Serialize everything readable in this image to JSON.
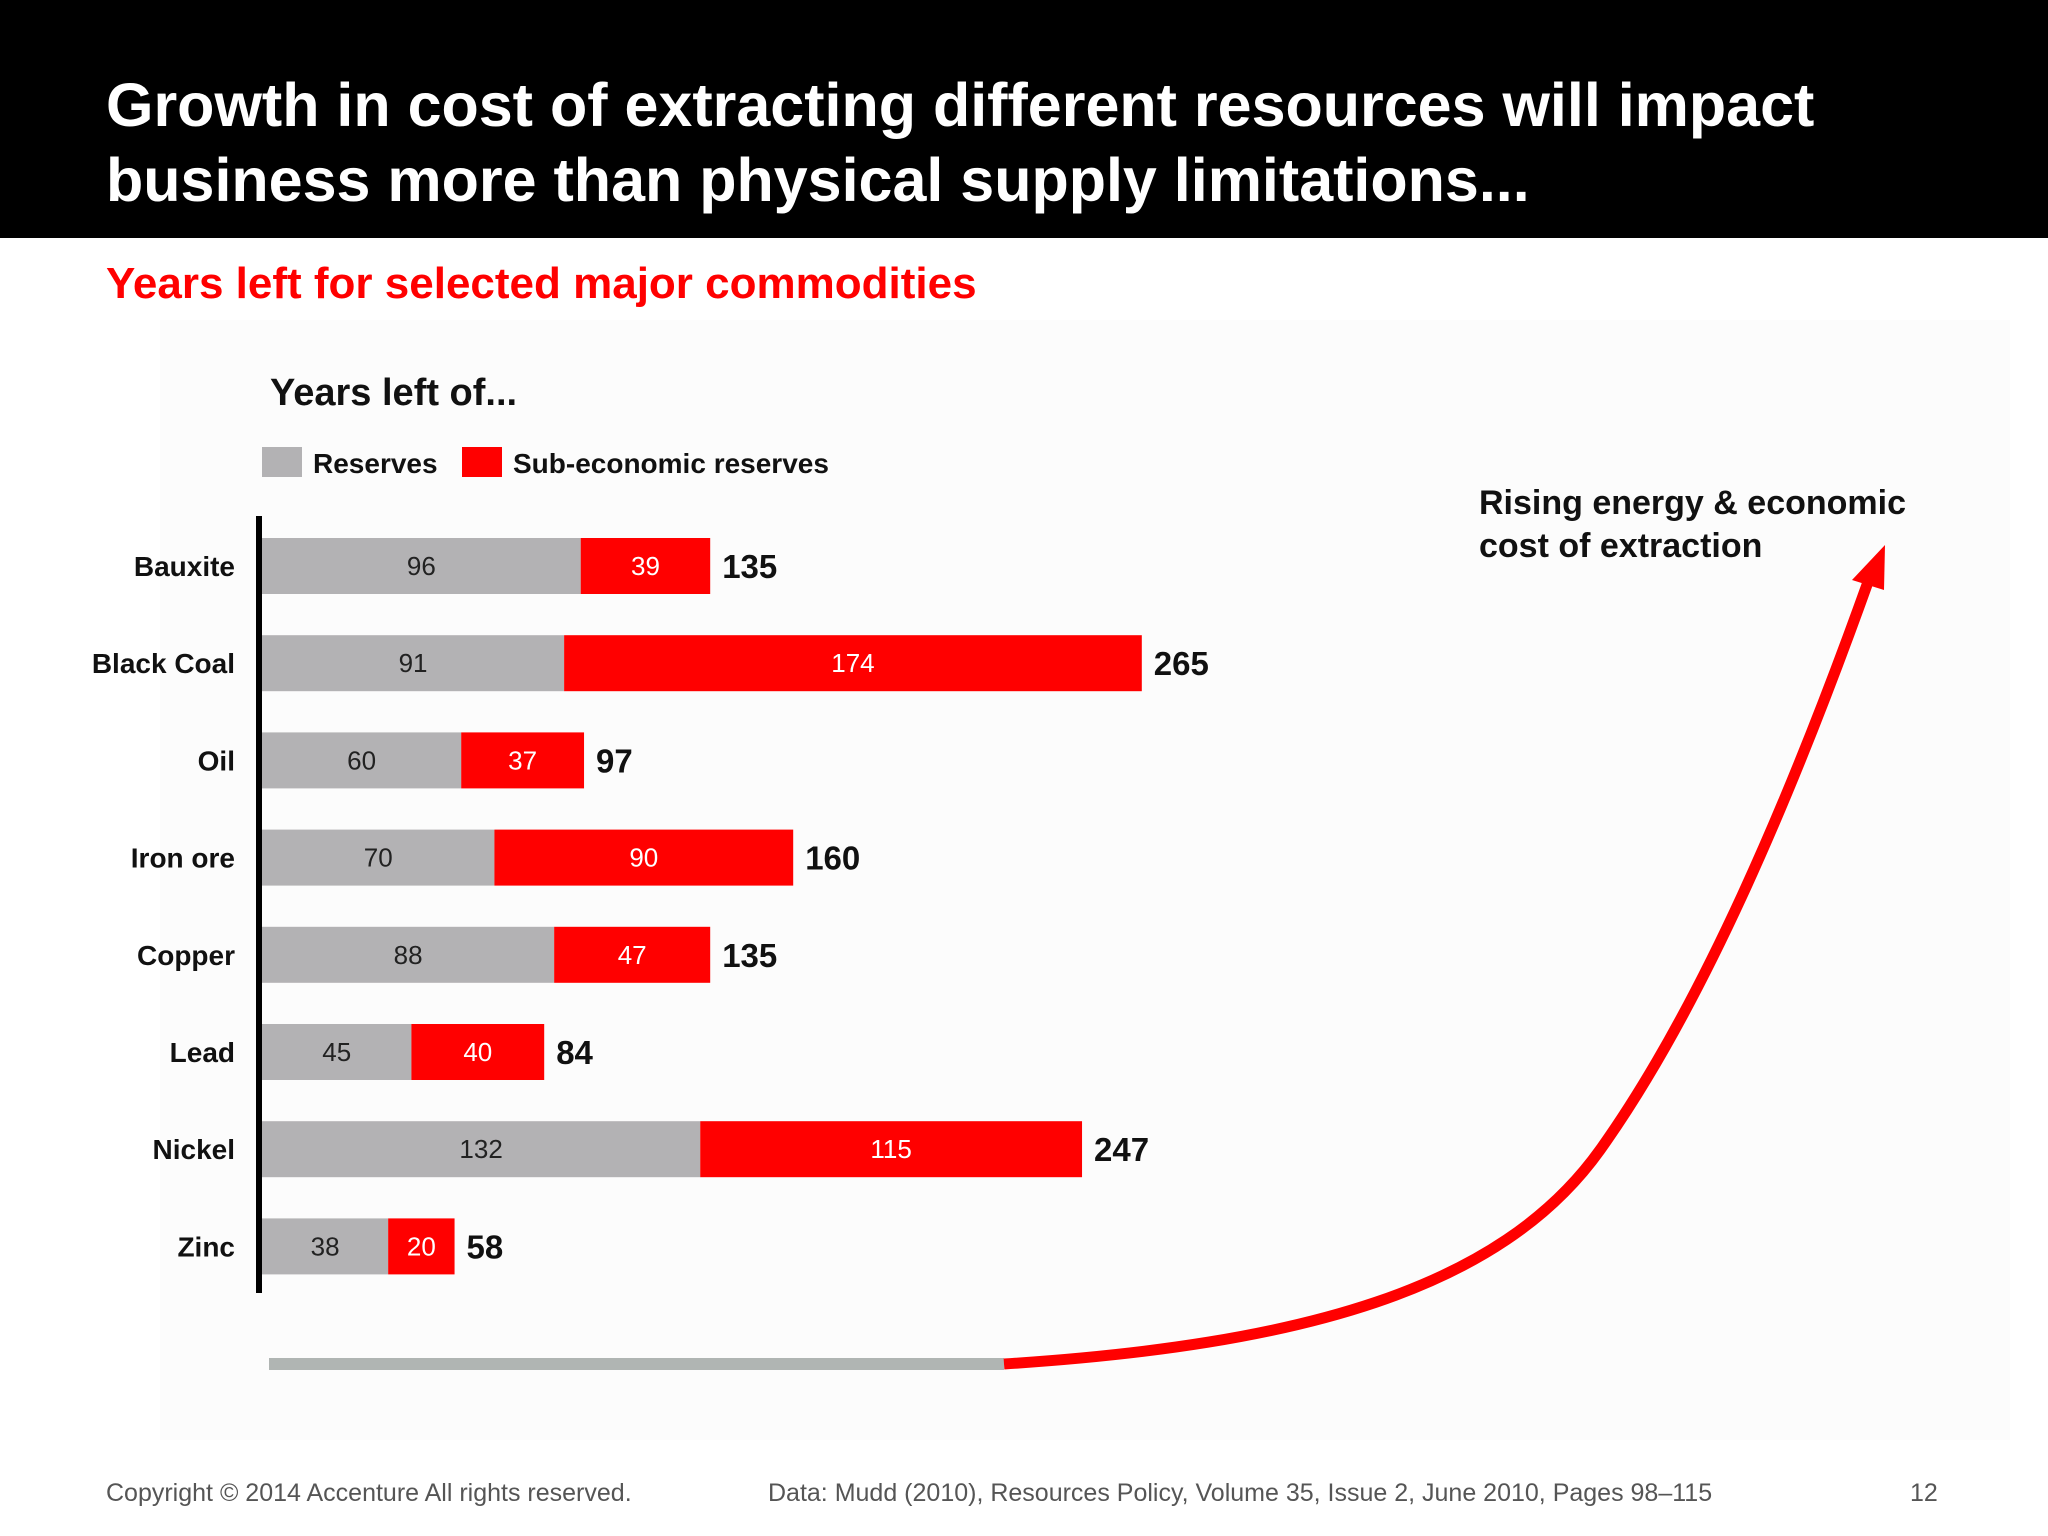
{
  "slide": {
    "title_line1": "Growth in cost of extracting different resources will impact",
    "title_line2": "business more than physical supply limitations...",
    "subtitle": "Years left for selected major commodities",
    "page_number": "12"
  },
  "footer": {
    "copyright": "Copyright © 2014 Accenture All rights reserved.",
    "source": "Data: Mudd (2010), Resources Policy, Volume 35, Issue 2, June 2010, Pages 98–115"
  },
  "annotation": {
    "line1": "Rising energy & economic",
    "line2": "cost of extraction"
  },
  "colors": {
    "reserves": "#b3b2b4",
    "sub_economic": "#ff0000",
    "baseline_gray": "#b0b5b3",
    "arrow": "#ff0000"
  },
  "chart_data": {
    "type": "bar",
    "orientation": "horizontal",
    "stacked": true,
    "title": "Years left of...",
    "categories": [
      "Bauxite",
      "Black Coal",
      "Oil",
      "Iron ore",
      "Copper",
      "Lead",
      "Nickel",
      "Zinc"
    ],
    "series": [
      {
        "name": "Reserves",
        "color": "#b3b2b4",
        "values": [
          96,
          91,
          60,
          70,
          88,
          45,
          132,
          38
        ]
      },
      {
        "name": "Sub-economic reserves",
        "color": "#ff0000",
        "values": [
          39,
          174,
          37,
          90,
          47,
          40,
          115,
          20
        ]
      }
    ],
    "totals": [
      135,
      265,
      97,
      160,
      135,
      84,
      247,
      58
    ],
    "legend_position": "top-left",
    "grid": false
  }
}
